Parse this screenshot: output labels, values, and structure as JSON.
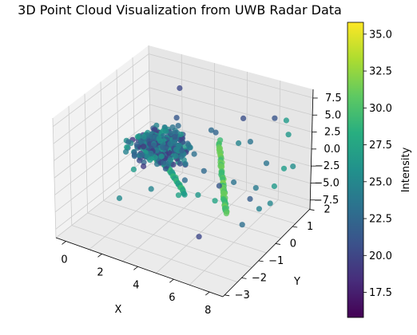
{
  "chart_data": {
    "type": "scatter",
    "title": "3D Point Cloud Visualization from UWB Radar Data",
    "xlabel": "X",
    "ylabel": "Y",
    "zlabel": "",
    "xlim": [
      -0.5,
      9
    ],
    "ylim": [
      -3,
      2.6
    ],
    "zlim": [
      -8.5,
      9
    ],
    "x_ticks": [
      "0",
      "2",
      "4",
      "6",
      "8"
    ],
    "y_ticks": [
      "−3",
      "−2",
      "−1",
      "0",
      "1",
      "2"
    ],
    "z_ticks": [
      "−7.5",
      "−5.0",
      "−2.5",
      "0.0",
      "2.5",
      "5.0",
      "7.5"
    ],
    "colorbar": {
      "label": "Intensity",
      "colormap": "viridis",
      "range": [
        15.8,
        35.8
      ],
      "ticks": [
        "17.5",
        "20.0",
        "22.5",
        "25.0",
        "27.5",
        "30.0",
        "32.5",
        "35.0"
      ]
    },
    "grid": true,
    "point_groups": [
      {
        "shape": "dense-cluster",
        "x_range": [
          0.5,
          5.0
        ],
        "y_range": [
          -1.5,
          1.2
        ],
        "z_range": [
          -2.5,
          3.5
        ],
        "intensity_range": [
          19,
          27
        ],
        "approx_points": 420
      },
      {
        "shape": "curved-band",
        "x_range": [
          0.2,
          3.5
        ],
        "y_range": [
          0.5,
          2.0
        ],
        "z_range": [
          -7.5,
          -5.5
        ],
        "intensity_range": [
          26,
          30
        ],
        "approx_points": 60
      },
      {
        "shape": "arc",
        "x_range": [
          4.8,
          6.8
        ],
        "y_range": [
          -0.5,
          1.2
        ],
        "z_range": [
          -4.5,
          0.5
        ],
        "intensity_range": [
          29,
          32
        ],
        "approx_points": 70
      },
      {
        "shape": "scattered",
        "x_range": [
          2,
          9
        ],
        "y_range": [
          -2.5,
          2.5
        ],
        "z_range": [
          -6,
          6
        ],
        "intensity_range": [
          20,
          28
        ],
        "approx_points": 35
      }
    ]
  }
}
